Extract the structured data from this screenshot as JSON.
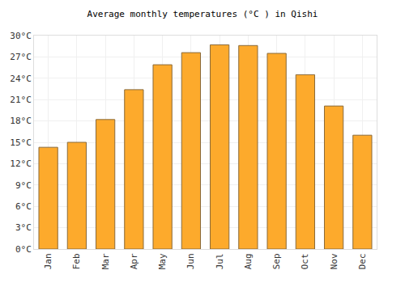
{
  "chart_data": {
    "type": "bar",
    "title": "Average monthly temperatures (°C ) in Qishi",
    "categories": [
      "Jan",
      "Feb",
      "Mar",
      "Apr",
      "May",
      "Jun",
      "Jul",
      "Aug",
      "Sep",
      "Oct",
      "Nov",
      "Dec"
    ],
    "values": [
      14.3,
      15.0,
      18.2,
      22.4,
      25.9,
      27.6,
      28.7,
      28.6,
      27.5,
      24.5,
      20.1,
      16.0
    ],
    "color": "#fdaa2c",
    "ylim": [
      0,
      30
    ],
    "yticks": [
      {
        "value": 0,
        "label": "0°C"
      },
      {
        "value": 3,
        "label": "3°C"
      },
      {
        "value": 6,
        "label": "6°C"
      },
      {
        "value": 9,
        "label": "9°C"
      },
      {
        "value": 12,
        "label": "12°C"
      },
      {
        "value": 15,
        "label": "15°C"
      },
      {
        "value": 18,
        "label": "18°C"
      },
      {
        "value": 21,
        "label": "21°C"
      },
      {
        "value": 24,
        "label": "24°C"
      },
      {
        "value": 27,
        "label": "27°C"
      },
      {
        "value": 30,
        "label": "30°C"
      }
    ],
    "grid": true
  }
}
